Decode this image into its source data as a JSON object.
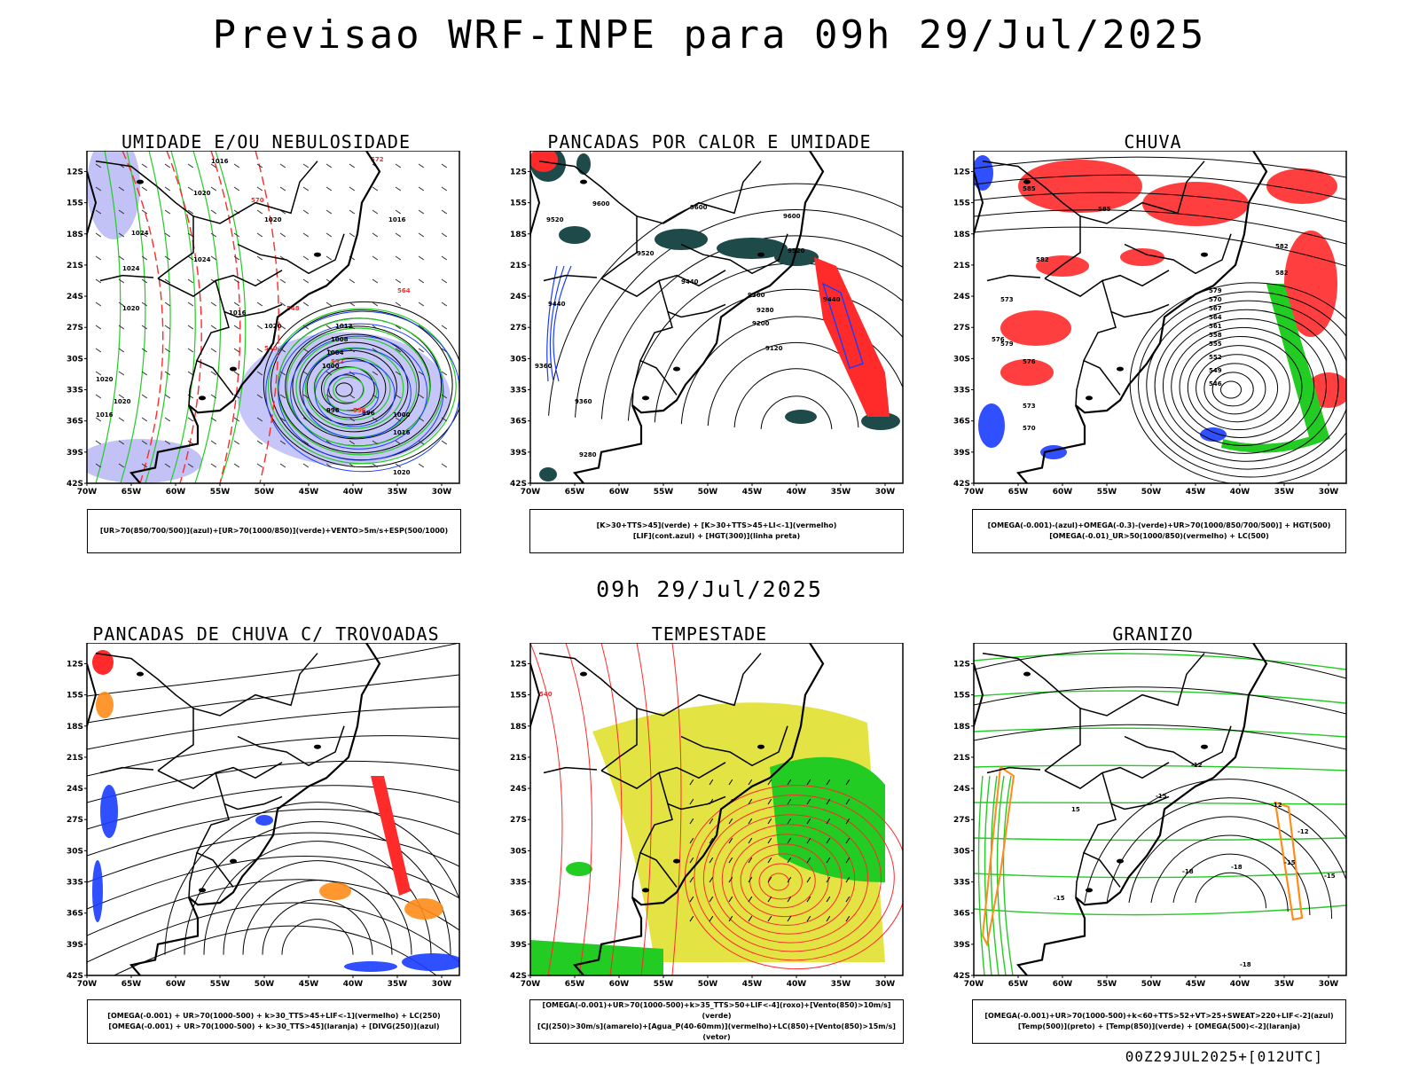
{
  "title": "Previsao WRF-INPE  para 09h 29/Jul/2025",
  "mid_title": "09h 29/Jul/2025",
  "footer": "00Z29JUL2025+[012UTC]",
  "axes": {
    "lat_labels": [
      "12S",
      "15S",
      "18S",
      "21S",
      "24S",
      "27S",
      "30S",
      "33S",
      "36S",
      "39S",
      "42S"
    ],
    "lon_labels": [
      "70W",
      "65W",
      "60W",
      "55W",
      "50W",
      "45W",
      "40W",
      "35W",
      "30W"
    ]
  },
  "colors": {
    "blue": "#1a3cff",
    "green": "#22cc22",
    "red": "#ff2a2a",
    "lavender": "#b3b3f5",
    "darkteal": "#1f4a4a",
    "yellow": "#e0e030",
    "orange": "#ff8c1a"
  },
  "panels": [
    {
      "title": "UMIDADE E/OU NEBULOSIDADE",
      "legend": [
        "[UR>70(850/700/500)](azul)+[UR>70(1000/850)](verde)+VENTO>5m/s+ESP(500/1000)"
      ],
      "contour_labels": [
        "1016",
        "1020",
        "1020",
        "1024",
        "1024",
        "1024",
        "1020",
        "1020",
        "1016",
        "1016",
        "1012",
        "1008",
        "1004",
        "1000",
        "996",
        "996",
        "1000",
        "1016",
        "1020",
        "1020",
        "1016",
        "1020",
        "572",
        "570",
        "564",
        "552",
        "548",
        "556",
        "540"
      ]
    },
    {
      "title": "PANCADAS POR CALOR E UMIDADE",
      "legend": [
        "[K>30+TTS>45](verde)  +  [K>30+TTS>45+LI<-1](vermelho)",
        "[LIF](cont.azul)  +  [HGT(300)](linha preta)"
      ],
      "contour_labels": [
        "9520",
        "9600",
        "9600",
        "9600",
        "9520",
        "9520",
        "9440",
        "9440",
        "9360",
        "9280",
        "9200",
        "9120",
        "9440",
        "9360",
        "9280",
        "9360"
      ]
    },
    {
      "title": "CHUVA",
      "legend": [
        "[OMEGA(-0.001)-(azul)+OMEGA(-0.3)-(verde)+UR>70(1000/850/700/500)]  +  HGT(500)",
        "[OMEGA(-0.01)_UR>50(1000/850)(vermelho)  +  LC(500)"
      ],
      "contour_labels": [
        "585",
        "585",
        "582",
        "582",
        "582",
        "579",
        "570",
        "567",
        "564",
        "561",
        "558",
        "555",
        "552",
        "549",
        "546",
        "573",
        "576",
        "579",
        "576",
        "573",
        "570"
      ]
    },
    {
      "title": "PANCADAS DE CHUVA C/ TROVOADAS",
      "legend": [
        "[OMEGA(-0.001)  +  UR>70(1000-500)  +  k>30_TTS>45+LIF<-1](vermelho)  +  LC(250)",
        "[OMEGA(-0.001)  +  UR>70(1000-500)  +  k>30_TTS>45](laranja)  +  [DIVG(250)](azul)"
      ],
      "contour_labels": []
    },
    {
      "title": "TEMPESTADE",
      "legend": [
        "[OMEGA(-0.001)+UR>70(1000-500)+k>35_TTS>50+LIF<-4](roxo)+[Vento(850)>10m/s](verde)",
        "[CJ(250)>30m/s](amarelo)+[Agua_P(40-60mm)](vermelho)+LC(850)+[Vento(850)>15m/s](vetor)"
      ],
      "contour_labels": [
        "540"
      ]
    },
    {
      "title": "GRANIZO",
      "legend": [
        "[OMEGA(-0.001)+UR>70(1000-500)+k<60+TTS>52+VT>25+SWEAT>220+LIF<-2](azul)",
        "[Temp(500)](preto)  +  [Temp(850)](verde)  +  [OMEGA(500)<-2](laranja)"
      ],
      "contour_labels": [
        "-12",
        "-12",
        "-15",
        "-15",
        "-18",
        "-18",
        "-18",
        "-15",
        "-12",
        "-15",
        "15"
      ]
    }
  ]
}
